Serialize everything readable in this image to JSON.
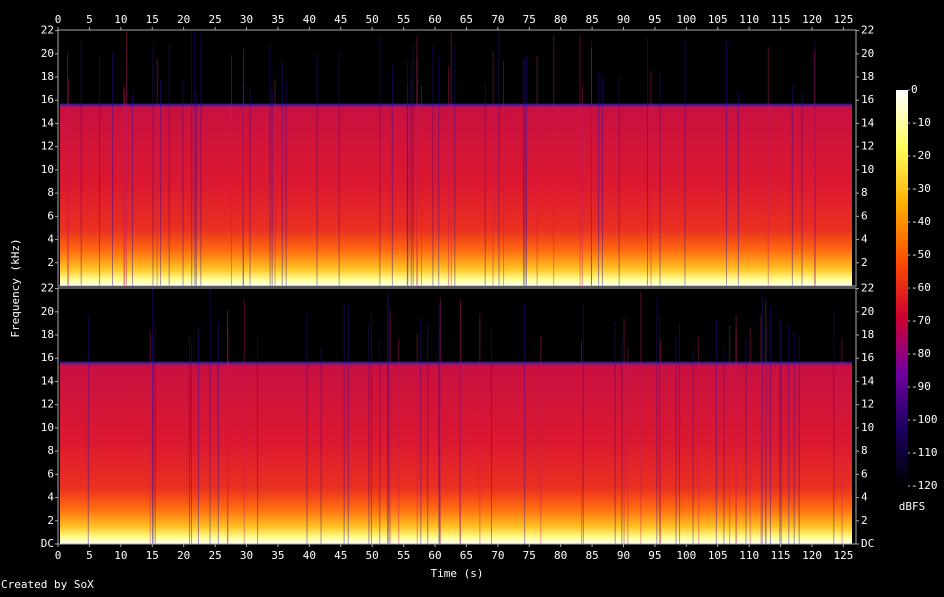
{
  "chart_data": [
    {
      "type": "spectrogram",
      "x_label": "Time (s)",
      "y_label": "Frequency (kHz)",
      "credit": "Created by SoX",
      "xlim": [
        0,
        127
      ],
      "xticks": [
        0,
        5,
        10,
        15,
        20,
        25,
        30,
        35,
        40,
        45,
        50,
        55,
        60,
        65,
        70,
        75,
        80,
        85,
        90,
        95,
        100,
        105,
        110,
        115,
        120,
        125
      ],
      "ylim": [
        0,
        22.05
      ],
      "yticks": [
        2,
        4,
        6,
        8,
        10,
        12,
        14,
        16,
        18,
        20,
        22
      ],
      "colormap": [
        "#000000",
        "#1a0060",
        "#7000a0",
        "#d00030",
        "#ff5000",
        "#ffb000",
        "#ffff60",
        "#ffffff"
      ],
      "colorbar": {
        "label": "dBFS",
        "lim": [
          -120,
          0
        ],
        "ticks": [
          0,
          -10,
          -20,
          -30,
          -40,
          -50,
          -60,
          -70,
          -80,
          -90,
          -100,
          -110,
          -120
        ]
      }
    },
    {
      "type": "spectrogram",
      "xlim": [
        0,
        127
      ],
      "xticks": [
        0,
        5,
        10,
        15,
        20,
        25,
        30,
        35,
        40,
        45,
        50,
        55,
        60,
        65,
        70,
        75,
        80,
        85,
        90,
        95,
        100,
        105,
        110,
        115,
        120,
        125
      ],
      "ylim": [
        0,
        22.05
      ],
      "yticks": [
        {
          "value": 0,
          "label": "DC"
        },
        2,
        4,
        6,
        8,
        10,
        12,
        14,
        16,
        18,
        20,
        22
      ]
    }
  ]
}
